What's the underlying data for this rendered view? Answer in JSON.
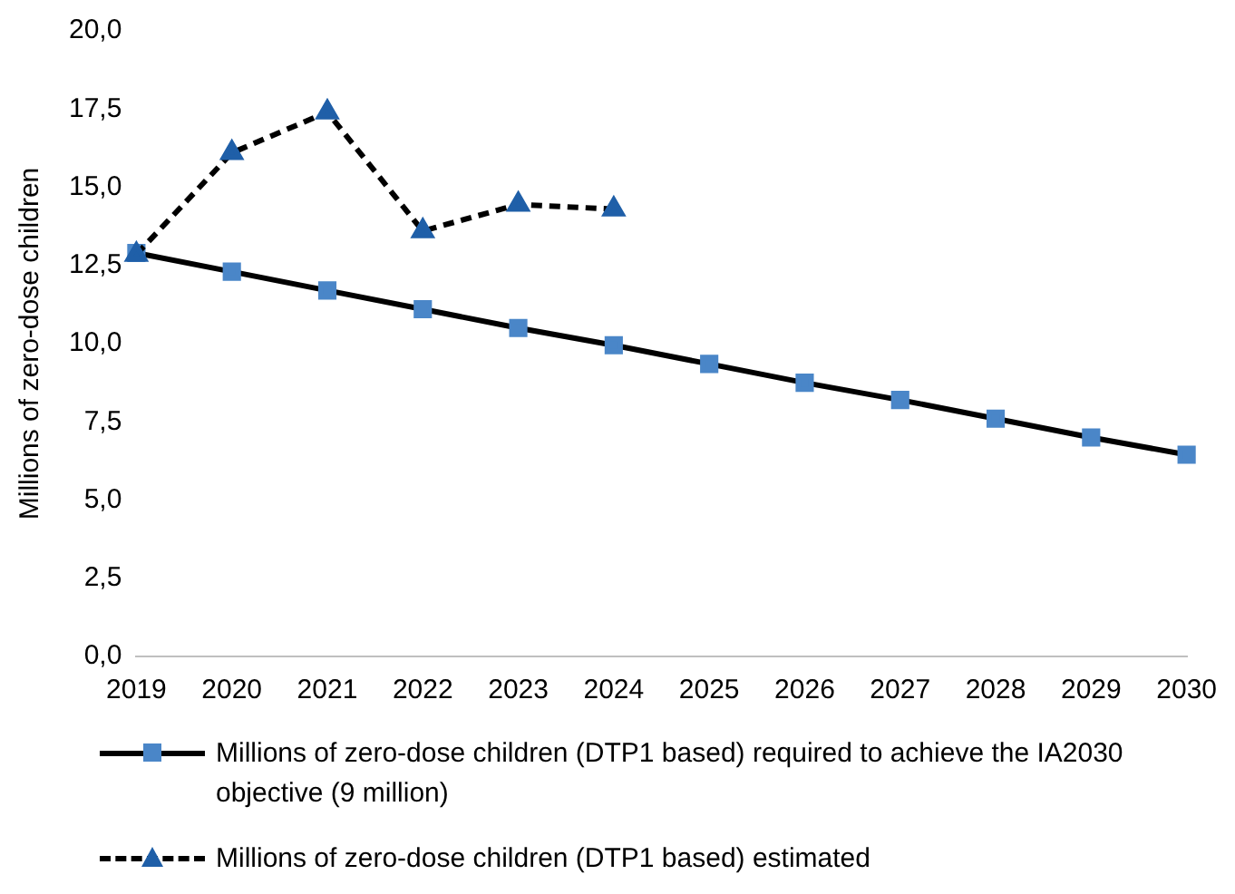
{
  "chart_data": {
    "type": "line",
    "ylabel": "Millions of zero-dose children",
    "categories": [
      "2019",
      "2020",
      "2021",
      "2022",
      "2023",
      "2024",
      "2025",
      "2026",
      "2027",
      "2028",
      "2029",
      "2030"
    ],
    "series": [
      {
        "name": "Millions of zero-dose children (DTP1 based) required to achieve the IA2030 objective (9 million)",
        "color": "#4a86c8",
        "marker": "square",
        "line_style": "solid",
        "values": [
          12.9,
          12.3,
          11.7,
          11.1,
          10.5,
          9.95,
          9.35,
          8.75,
          8.2,
          7.6,
          7.0,
          6.45
        ]
      },
      {
        "name": "Millions of zero-dose children (DTP1 based) estimated",
        "color": "#1f5fa8",
        "marker": "triangle",
        "line_style": "dashed",
        "values": [
          12.85,
          16.1,
          17.4,
          13.6,
          14.45,
          14.3,
          null,
          null,
          null,
          null,
          null,
          null
        ]
      }
    ],
    "ylim": [
      0,
      20
    ],
    "yticks": [
      {
        "value": 0,
        "label": "0,0"
      },
      {
        "value": 2.5,
        "label": "2,5"
      },
      {
        "value": 5,
        "label": "5,0"
      },
      {
        "value": 7.5,
        "label": "7,5"
      },
      {
        "value": 10,
        "label": "10,0"
      },
      {
        "value": 12.5,
        "label": "12,5"
      },
      {
        "value": 15,
        "label": "15,0"
      },
      {
        "value": 17.5,
        "label": "17,5"
      },
      {
        "value": 20,
        "label": "20,0"
      }
    ],
    "grid": false,
    "legend": "bottom"
  }
}
